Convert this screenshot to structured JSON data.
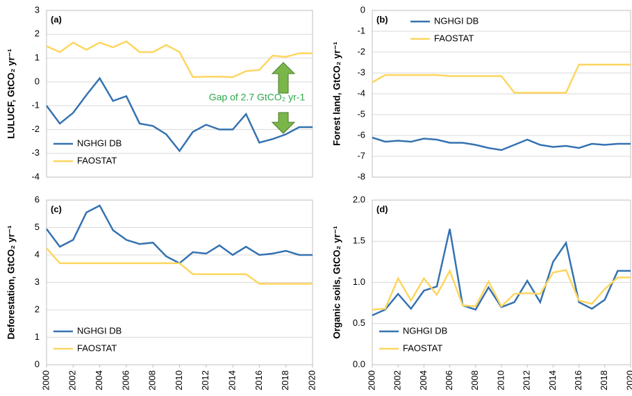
{
  "chart_data": [
    {
      "type": "line",
      "label": "(a)",
      "ylabel": "LULUCF, GtCO₂ yr⁻¹",
      "annotation": "Gap of 2.7 GtCO₂ yr-1",
      "x": [
        2000,
        2001,
        2002,
        2003,
        2004,
        2005,
        2006,
        2007,
        2008,
        2009,
        2010,
        2011,
        2012,
        2013,
        2014,
        2015,
        2016,
        2017,
        2018,
        2019,
        2020
      ],
      "xlim": [
        2000,
        2020
      ],
      "ylim": [
        -4,
        3
      ],
      "yticks": [
        -4,
        -3,
        -2,
        -1,
        0,
        1,
        2,
        3
      ],
      "grid": true,
      "legend": "lower left",
      "series": [
        {
          "name": "NGHGI DB",
          "color": "#3572b0",
          "values": [
            -1.0,
            -1.75,
            -1.3,
            -0.55,
            0.15,
            -0.8,
            -0.6,
            -1.75,
            -1.85,
            -2.2,
            -2.9,
            -2.1,
            -1.8,
            -2.0,
            -2.0,
            -1.35,
            -2.55,
            -2.4,
            -2.2,
            -1.9,
            -1.9
          ]
        },
        {
          "name": "FAOSTAT",
          "color": "#fdd65f",
          "values": [
            1.5,
            1.25,
            1.65,
            1.35,
            1.65,
            1.45,
            1.7,
            1.25,
            1.25,
            1.55,
            1.25,
            0.2,
            0.22,
            0.22,
            0.2,
            0.45,
            0.5,
            1.1,
            1.05,
            1.2,
            1.2
          ]
        }
      ]
    },
    {
      "type": "line",
      "label": "(b)",
      "ylabel": "Forest land, GtCO₂ yr⁻¹",
      "x": [
        2000,
        2001,
        2002,
        2003,
        2004,
        2005,
        2006,
        2007,
        2008,
        2009,
        2010,
        2011,
        2012,
        2013,
        2014,
        2015,
        2016,
        2017,
        2018,
        2019,
        2020
      ],
      "xlim": [
        2000,
        2020
      ],
      "ylim": [
        -8,
        0
      ],
      "yticks": [
        -8,
        -7,
        -6,
        -5,
        -4,
        -3,
        -2,
        -1,
        0
      ],
      "grid": true,
      "legend": "upper left",
      "series": [
        {
          "name": "NGHGI DB",
          "color": "#3572b0",
          "values": [
            -6.1,
            -6.3,
            -6.25,
            -6.3,
            -6.15,
            -6.2,
            -6.35,
            -6.35,
            -6.45,
            -6.6,
            -6.7,
            -6.45,
            -6.2,
            -6.45,
            -6.55,
            -6.5,
            -6.6,
            -6.4,
            -6.45,
            -6.4,
            -6.4
          ]
        },
        {
          "name": "FAOSTAT",
          "color": "#fdd65f",
          "values": [
            -3.45,
            -3.1,
            -3.1,
            -3.1,
            -3.1,
            -3.1,
            -3.15,
            -3.15,
            -3.15,
            -3.15,
            -3.15,
            -3.95,
            -3.95,
            -3.95,
            -3.95,
            -3.95,
            -2.6,
            -2.6,
            -2.6,
            -2.6,
            -2.6
          ]
        }
      ]
    },
    {
      "type": "line",
      "label": "(c)",
      "ylabel": "Deforestation, GtCO₂ yr⁻¹",
      "x": [
        2000,
        2001,
        2002,
        2003,
        2004,
        2005,
        2006,
        2007,
        2008,
        2009,
        2010,
        2011,
        2012,
        2013,
        2014,
        2015,
        2016,
        2017,
        2018,
        2019,
        2020
      ],
      "xlim": [
        2000,
        2020
      ],
      "xticks": [
        2000,
        2002,
        2004,
        2006,
        2008,
        2010,
        2012,
        2014,
        2016,
        2018,
        2020
      ],
      "ylim": [
        0,
        6
      ],
      "yticks": [
        0,
        1,
        2,
        3,
        4,
        5,
        6
      ],
      "grid": true,
      "legend": "lower left",
      "series": [
        {
          "name": "NGHGI DB",
          "color": "#3572b0",
          "values": [
            4.95,
            4.3,
            4.55,
            5.55,
            5.8,
            4.9,
            4.55,
            4.4,
            4.45,
            3.95,
            3.7,
            4.1,
            4.05,
            4.35,
            4.0,
            4.3,
            4.0,
            4.05,
            4.15,
            4.0,
            4.0
          ]
        },
        {
          "name": "FAOSTAT",
          "color": "#fdd65f",
          "values": [
            4.25,
            3.7,
            3.7,
            3.7,
            3.7,
            3.7,
            3.7,
            3.7,
            3.7,
            3.7,
            3.7,
            3.3,
            3.3,
            3.3,
            3.3,
            3.3,
            2.95,
            2.95,
            2.95,
            2.95,
            2.95
          ]
        }
      ]
    },
    {
      "type": "line",
      "label": "(d)",
      "ylabel": "Organic soils, GtCO₂ yr⁻¹",
      "x": [
        2000,
        2001,
        2002,
        2003,
        2004,
        2005,
        2006,
        2007,
        2008,
        2009,
        2010,
        2011,
        2012,
        2013,
        2014,
        2015,
        2016,
        2017,
        2018,
        2019,
        2020
      ],
      "xlim": [
        2000,
        2020
      ],
      "xticks": [
        2000,
        2002,
        2004,
        2006,
        2008,
        2010,
        2012,
        2014,
        2016,
        2018,
        2020
      ],
      "ylim": [
        0,
        2
      ],
      "yticks": [
        {
          "value": 0,
          "label": "0.0"
        },
        0.5,
        {
          "value": 1,
          "label": "1.0"
        },
        1.5,
        {
          "value": 2,
          "label": "2.0"
        }
      ],
      "grid": true,
      "legend": "lower left",
      "series": [
        {
          "name": "NGHGI DB",
          "color": "#3572b0",
          "values": [
            0.6,
            0.67,
            0.86,
            0.68,
            0.9,
            0.95,
            1.65,
            0.72,
            0.67,
            0.94,
            0.7,
            0.76,
            1.02,
            0.76,
            1.25,
            1.48,
            0.76,
            0.68,
            0.79,
            1.14,
            1.14
          ]
        },
        {
          "name": "FAOSTAT",
          "color": "#fdd65f",
          "values": [
            0.67,
            0.68,
            1.05,
            0.78,
            1.05,
            0.85,
            1.14,
            0.72,
            0.71,
            1.01,
            0.71,
            0.86,
            0.87,
            0.86,
            1.12,
            1.15,
            0.78,
            0.74,
            0.92,
            1.06,
            1.06
          ]
        }
      ]
    }
  ]
}
